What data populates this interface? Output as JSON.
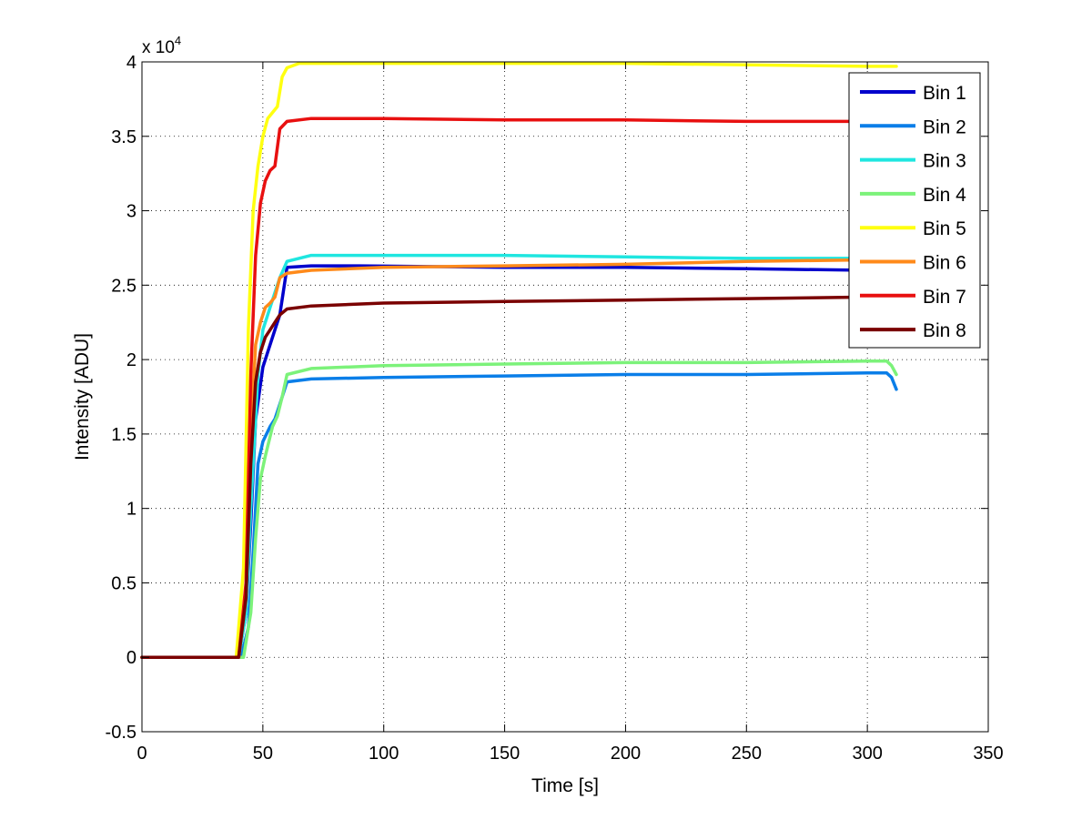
{
  "chart_data": {
    "type": "line",
    "xlabel": "Time [s]",
    "ylabel": "Intensity [ADU]",
    "xlim": [
      0,
      350
    ],
    "ylim": [
      -0.5,
      4
    ],
    "x_ticks": [
      "0",
      "50",
      "100",
      "150",
      "200",
      "250",
      "300",
      "350"
    ],
    "y_ticks": [
      "-0.5",
      "0",
      "0.5",
      "1",
      "1.5",
      "2",
      "2.5",
      "3",
      "3.5",
      "4"
    ],
    "y_multiplier": {
      "base": "x 10",
      "exponent": "4"
    },
    "grid": true,
    "legend_position": "top-right",
    "series": [
      {
        "name": "Bin 1",
        "color": "#0000cc",
        "x": [
          0,
          40,
          43,
          45,
          47,
          50,
          53,
          55,
          57,
          60,
          70,
          90,
          150,
          200,
          250,
          300,
          310
        ],
        "y": [
          0,
          0,
          0.3,
          0.9,
          1.6,
          1.95,
          2.1,
          2.2,
          2.3,
          2.62,
          2.63,
          2.63,
          2.62,
          2.62,
          2.61,
          2.6,
          2.6
        ]
      },
      {
        "name": "Bin 2",
        "color": "#0a7ee8",
        "x": [
          0,
          41,
          44,
          46,
          48,
          50,
          53,
          55,
          57,
          60,
          70,
          100,
          150,
          200,
          250,
          300,
          308,
          310,
          312
        ],
        "y": [
          0,
          0,
          0.2,
          0.7,
          1.3,
          1.45,
          1.55,
          1.6,
          1.7,
          1.85,
          1.87,
          1.88,
          1.89,
          1.9,
          1.9,
          1.91,
          1.91,
          1.88,
          1.8
        ]
      },
      {
        "name": "Bin 3",
        "color": "#1fe6e0",
        "x": [
          0,
          40,
          43,
          45,
          48,
          50,
          53,
          55,
          57,
          60,
          70,
          100,
          150,
          200,
          250,
          300,
          310
        ],
        "y": [
          0,
          0,
          0.3,
          1.0,
          1.9,
          2.2,
          2.35,
          2.45,
          2.55,
          2.66,
          2.7,
          2.7,
          2.7,
          2.69,
          2.68,
          2.68,
          2.68
        ]
      },
      {
        "name": "Bin 4",
        "color": "#7cf27a",
        "x": [
          0,
          42,
          45,
          47,
          49,
          51,
          54,
          56,
          58,
          60,
          70,
          100,
          150,
          200,
          250,
          300,
          308,
          310,
          312
        ],
        "y": [
          0,
          0,
          0.3,
          0.8,
          1.2,
          1.35,
          1.55,
          1.62,
          1.75,
          1.9,
          1.94,
          1.96,
          1.97,
          1.98,
          1.98,
          1.99,
          1.99,
          1.96,
          1.9
        ]
      },
      {
        "name": "Bin 5",
        "color": "#ffff10",
        "x": [
          0,
          39,
          42,
          44,
          46,
          48,
          50,
          52,
          54,
          56,
          58,
          60,
          65,
          80,
          150,
          200,
          250,
          300,
          312
        ],
        "y": [
          0,
          0,
          0.6,
          2.2,
          3.0,
          3.3,
          3.5,
          3.62,
          3.66,
          3.7,
          3.9,
          3.96,
          3.99,
          3.99,
          3.99,
          3.99,
          3.98,
          3.97,
          3.97
        ]
      },
      {
        "name": "Bin 6",
        "color": "#ff8a1a",
        "x": [
          0,
          40,
          43,
          45,
          47,
          49,
          51,
          53,
          55,
          57,
          60,
          70,
          100,
          150,
          200,
          250,
          300,
          310
        ],
        "y": [
          0,
          0,
          0.4,
          1.5,
          2.1,
          2.25,
          2.35,
          2.38,
          2.42,
          2.55,
          2.58,
          2.6,
          2.62,
          2.63,
          2.64,
          2.66,
          2.67,
          2.67
        ]
      },
      {
        "name": "Bin 7",
        "color": "#e81010",
        "x": [
          0,
          40,
          43,
          45,
          47,
          49,
          51,
          53,
          55,
          57,
          60,
          70,
          100,
          150,
          200,
          250,
          300,
          310
        ],
        "y": [
          0,
          0,
          0.5,
          1.9,
          2.7,
          3.05,
          3.2,
          3.27,
          3.3,
          3.55,
          3.6,
          3.62,
          3.62,
          3.61,
          3.61,
          3.6,
          3.6,
          3.6
        ]
      },
      {
        "name": "Bin 8",
        "color": "#7a0000",
        "x": [
          0,
          40,
          43,
          45,
          47,
          49,
          51,
          53,
          55,
          57,
          60,
          70,
          100,
          150,
          200,
          250,
          300,
          310
        ],
        "y": [
          0,
          0,
          0.4,
          1.3,
          1.85,
          2.05,
          2.15,
          2.2,
          2.25,
          2.3,
          2.34,
          2.36,
          2.38,
          2.39,
          2.4,
          2.41,
          2.42,
          2.42
        ]
      }
    ]
  }
}
